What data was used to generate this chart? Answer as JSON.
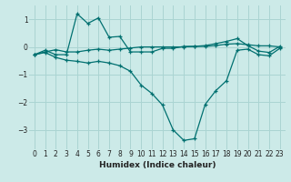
{
  "xlabel": "Humidex (Indice chaleur)",
  "background_color": "#cceae8",
  "grid_color": "#aad4d2",
  "line_color": "#007070",
  "xlim": [
    -0.5,
    23.5
  ],
  "ylim": [
    -3.7,
    1.5
  ],
  "yticks": [
    -3,
    -2,
    -1,
    0,
    1
  ],
  "xticks": [
    0,
    1,
    2,
    3,
    4,
    5,
    6,
    7,
    8,
    9,
    10,
    11,
    12,
    13,
    14,
    15,
    16,
    17,
    18,
    19,
    20,
    21,
    22,
    23
  ],
  "line1_x": [
    0,
    1,
    2,
    3,
    4,
    5,
    6,
    7,
    8,
    9,
    10,
    11,
    12,
    13,
    14,
    15,
    16,
    17,
    18,
    19,
    20,
    21,
    22,
    23
  ],
  "line1_y": [
    -0.28,
    -0.18,
    -0.1,
    -0.18,
    -0.18,
    -0.12,
    -0.08,
    -0.12,
    -0.08,
    -0.04,
    0.0,
    0.0,
    0.0,
    0.0,
    0.0,
    0.02,
    0.02,
    0.05,
    0.1,
    0.12,
    0.08,
    0.04,
    0.04,
    0.0
  ],
  "line2_x": [
    0,
    1,
    2,
    3,
    4,
    5,
    6,
    7,
    8,
    9,
    10,
    11,
    12,
    13,
    14,
    15,
    16,
    17,
    18,
    19,
    20,
    21,
    22,
    23
  ],
  "line2_y": [
    -0.28,
    -0.12,
    -0.28,
    -0.28,
    1.2,
    0.85,
    1.05,
    0.35,
    0.38,
    -0.18,
    -0.18,
    -0.18,
    -0.05,
    -0.05,
    0.02,
    0.02,
    0.05,
    0.12,
    0.2,
    0.3,
    0.05,
    -0.15,
    -0.2,
    0.02
  ],
  "line3_x": [
    0,
    1,
    2,
    3,
    4,
    5,
    6,
    7,
    8,
    9,
    10,
    11,
    12,
    13,
    14,
    15,
    16,
    17,
    18,
    19,
    20,
    21,
    22,
    23
  ],
  "line3_y": [
    -0.28,
    -0.2,
    -0.38,
    -0.48,
    -0.52,
    -0.58,
    -0.52,
    -0.58,
    -0.68,
    -0.88,
    -1.38,
    -1.68,
    -2.1,
    -3.0,
    -3.38,
    -3.32,
    -2.08,
    -1.58,
    -1.22,
    -0.12,
    -0.08,
    -0.28,
    -0.32,
    -0.05
  ]
}
